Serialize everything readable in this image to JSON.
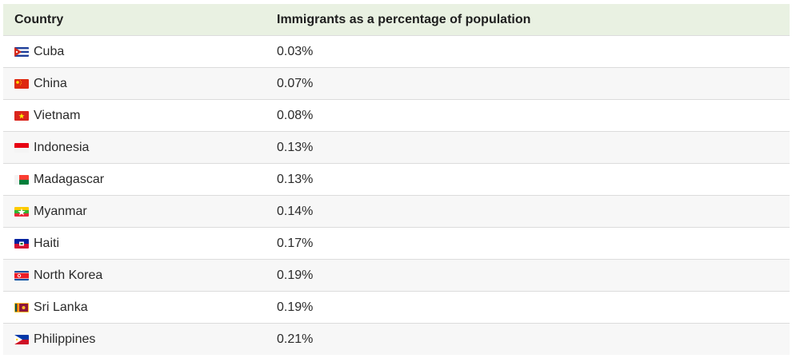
{
  "table": {
    "headers": [
      "Country",
      "Immigrants as a percentage of population"
    ],
    "rows": [
      {
        "country": "Cuba",
        "value": "0.03%",
        "flag_icon": "cuba-flag-icon"
      },
      {
        "country": "China",
        "value": "0.07%",
        "flag_icon": "china-flag-icon"
      },
      {
        "country": "Vietnam",
        "value": "0.08%",
        "flag_icon": "vietnam-flag-icon"
      },
      {
        "country": "Indonesia",
        "value": "0.13%",
        "flag_icon": "indonesia-flag-icon"
      },
      {
        "country": "Madagascar",
        "value": "0.13%",
        "flag_icon": "madagascar-flag-icon"
      },
      {
        "country": "Myanmar",
        "value": "0.14%",
        "flag_icon": "myanmar-flag-icon"
      },
      {
        "country": "Haiti",
        "value": "0.17%",
        "flag_icon": "haiti-flag-icon"
      },
      {
        "country": "North Korea",
        "value": "0.19%",
        "flag_icon": "north-korea-flag-icon"
      },
      {
        "country": "Sri Lanka",
        "value": "0.19%",
        "flag_icon": "sri-lanka-flag-icon"
      },
      {
        "country": "Philippines",
        "value": "0.21%",
        "flag_icon": "philippines-flag-icon"
      }
    ]
  },
  "chart_data": {
    "type": "table",
    "columns": [
      "Country",
      "Immigrants as a percentage of population"
    ],
    "categories": [
      "Cuba",
      "China",
      "Vietnam",
      "Indonesia",
      "Madagascar",
      "Myanmar",
      "Haiti",
      "North Korea",
      "Sri Lanka",
      "Philippines"
    ],
    "values": [
      0.03,
      0.07,
      0.08,
      0.13,
      0.13,
      0.14,
      0.17,
      0.19,
      0.19,
      0.21
    ],
    "unit": "%"
  },
  "colors": {
    "header_bg": "#e9f1e2",
    "stripe_bg": "#f7f7f7",
    "row_border": "#dcdcdc"
  }
}
